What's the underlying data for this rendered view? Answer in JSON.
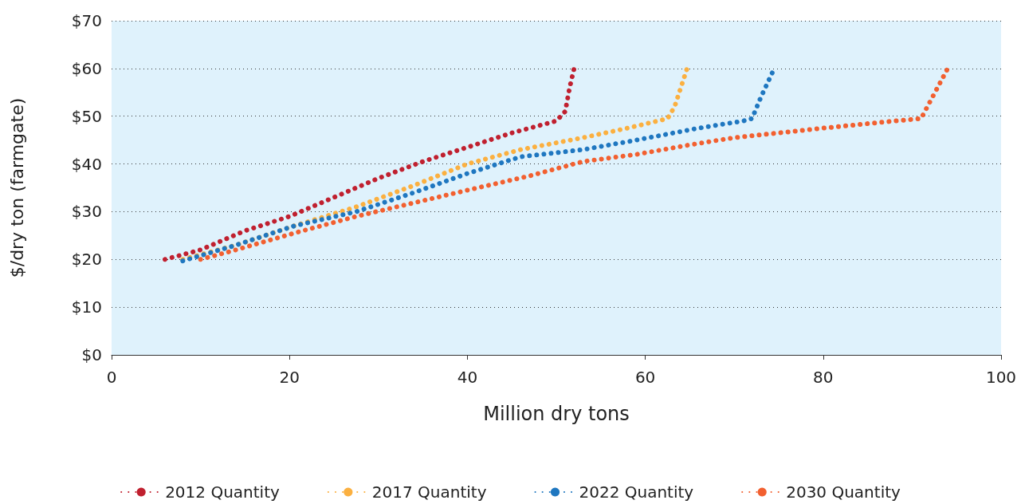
{
  "chart_data": {
    "type": "line",
    "xlabel": "Million dry tons",
    "ylabel": "$/dry ton (farmgate)",
    "xlim": [
      0,
      100
    ],
    "xticks": [
      0,
      20,
      40,
      60,
      80,
      100
    ],
    "ylim": [
      0,
      70
    ],
    "yticks": [
      {
        "value": 0,
        "label": "$0"
      },
      {
        "value": 10,
        "label": "$10"
      },
      {
        "value": 20,
        "label": "$20"
      },
      {
        "value": 30,
        "label": "$30"
      },
      {
        "value": 40,
        "label": "$40"
      },
      {
        "value": 50,
        "label": "$50"
      },
      {
        "value": 60,
        "label": "$60"
      },
      {
        "value": 70,
        "label": "$70"
      }
    ],
    "grid": "y",
    "legend": "bottom",
    "line_style": "dotted",
    "marker": "none",
    "series": [
      {
        "name": "2012 Quantity",
        "color": "#c0202f",
        "x": [
          6,
          10,
          15,
          20,
          25,
          30,
          35,
          40,
          45,
          50,
          51,
          51.5,
          52
        ],
        "values": [
          20,
          22,
          26,
          29,
          33,
          37,
          40.5,
          43.5,
          46.5,
          49,
          51,
          56,
          60
        ]
      },
      {
        "name": "2017 Quantity",
        "color": "#fbb040",
        "x": [
          8,
          14,
          20.5,
          27.5,
          34,
          40,
          46,
          53,
          58,
          62.5,
          63.3,
          64,
          64.7
        ],
        "values": [
          20,
          23,
          27,
          31,
          35.5,
          40,
          43,
          45.5,
          47.5,
          49.5,
          52,
          56,
          60
        ]
      },
      {
        "name": "2022 Quantity",
        "color": "#1f77c0",
        "x": [
          8,
          14,
          20.5,
          27.5,
          34,
          40,
          46,
          53,
          59,
          66,
          71,
          72,
          73,
          74.5
        ],
        "values": [
          19.7,
          23,
          27,
          30,
          34,
          38,
          41.5,
          43,
          45,
          47.5,
          49,
          49.5,
          54,
          60
        ]
      },
      {
        "name": "2030 Quantity",
        "color": "#f26030",
        "x": [
          10,
          14,
          20.5,
          27.5,
          40,
          47,
          53,
          59,
          65,
          70,
          80,
          88,
          91,
          92,
          94
        ],
        "values": [
          20,
          22,
          25.5,
          29,
          34.5,
          37.5,
          40.5,
          42,
          44,
          45.5,
          47.5,
          49,
          49.5,
          53,
          60
        ]
      }
    ]
  }
}
